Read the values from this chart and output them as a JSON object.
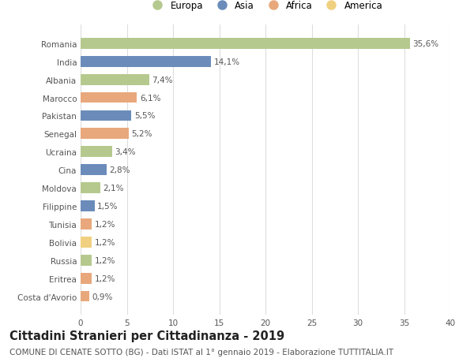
{
  "countries": [
    "Romania",
    "India",
    "Albania",
    "Marocco",
    "Pakistan",
    "Senegal",
    "Ucraina",
    "Cina",
    "Moldova",
    "Filippine",
    "Tunisia",
    "Bolivia",
    "Russia",
    "Eritrea",
    "Costa d'Avorio"
  ],
  "values": [
    35.6,
    14.1,
    7.4,
    6.1,
    5.5,
    5.2,
    3.4,
    2.8,
    2.1,
    1.5,
    1.2,
    1.2,
    1.2,
    1.2,
    0.9
  ],
  "labels": [
    "35,6%",
    "14,1%",
    "7,4%",
    "6,1%",
    "5,5%",
    "5,2%",
    "3,4%",
    "2,8%",
    "2,1%",
    "1,5%",
    "1,2%",
    "1,2%",
    "1,2%",
    "1,2%",
    "0,9%"
  ],
  "continents": [
    "Europa",
    "Asia",
    "Europa",
    "Africa",
    "Asia",
    "Africa",
    "Europa",
    "Asia",
    "Europa",
    "Asia",
    "Africa",
    "America",
    "Europa",
    "Africa",
    "Africa"
  ],
  "continent_colors": {
    "Europa": "#b5c98e",
    "Asia": "#6b8cba",
    "Africa": "#e8a87c",
    "America": "#f0d080"
  },
  "legend_order": [
    "Europa",
    "Asia",
    "Africa",
    "America"
  ],
  "xlim": [
    0,
    40
  ],
  "xticks": [
    0,
    5,
    10,
    15,
    20,
    25,
    30,
    35,
    40
  ],
  "title": "Cittadini Stranieri per Cittadinanza - 2019",
  "subtitle": "COMUNE DI CENATE SOTTO (BG) - Dati ISTAT al 1° gennaio 2019 - Elaborazione TUTTITALIA.IT",
  "background_color": "#ffffff",
  "grid_color": "#dddddd",
  "bar_height": 0.6,
  "title_fontsize": 10.5,
  "subtitle_fontsize": 7.5,
  "label_fontsize": 7.5,
  "tick_fontsize": 7.5,
  "legend_fontsize": 8.5
}
